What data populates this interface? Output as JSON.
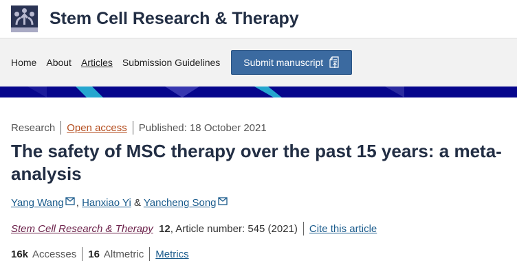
{
  "header": {
    "site_title": "Stem Cell Research & Therapy"
  },
  "nav": {
    "items": [
      "Home",
      "About",
      "Articles",
      "Submission Guidelines"
    ],
    "submit_label": "Submit manuscript"
  },
  "colors": {
    "brand_band": "#06068c",
    "submit_button": "#3b6aa0",
    "open_access": "#b34a1a",
    "journal_link": "#6b2049"
  },
  "article": {
    "type": "Research",
    "access": "Open access",
    "published": "Published: 18 October 2021",
    "title": "The safety of MSC therapy over the past 15 years: a meta-analysis",
    "authors": [
      {
        "name": "Yang Wang",
        "email": true
      },
      {
        "name": "Hanxiao Yi",
        "email": false
      },
      {
        "name": "Yancheng Song",
        "email": true
      }
    ],
    "author_sep_comma": ",",
    "author_sep_amp": "&",
    "journal": "Stem Cell Research & Therapy",
    "volume": "12",
    "article_number": ", Article number: 545 (2021)",
    "cite_label": "Cite this article",
    "accesses_value": "16k",
    "accesses_label": "Accesses",
    "altmetric_value": "16",
    "altmetric_label": "Altmetric",
    "metrics_label": "Metrics"
  }
}
